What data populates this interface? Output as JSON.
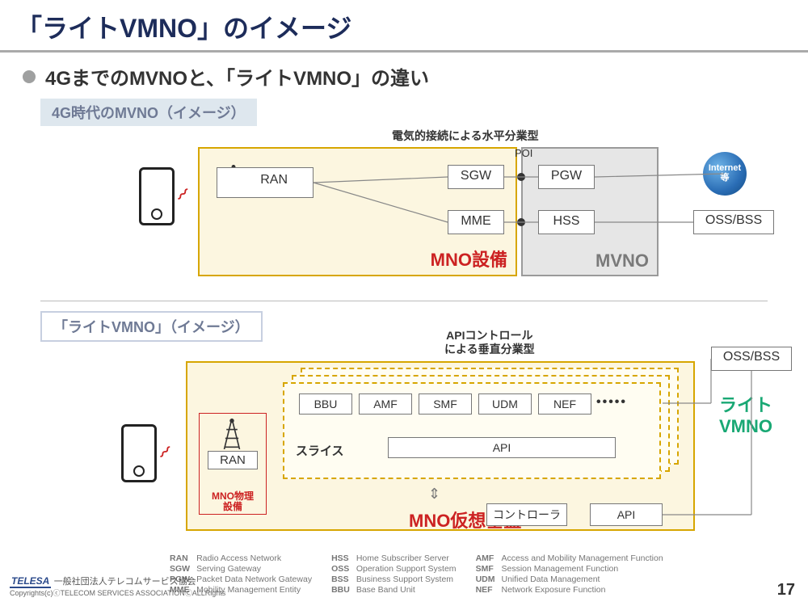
{
  "title": "「ライトVMNO」のイメージ",
  "subtitle": "4GまでのMVNOと、「ライトVMNO」の違い",
  "section1": {
    "header": "4G時代のMVNO（イメージ）",
    "topLabel": "電気的接続による水平分業型"
  },
  "section2": {
    "header": "「ライトVMNO」（イメージ）",
    "topLabel1": "APIコントロール",
    "topLabel2": "による垂直分業型"
  },
  "d1": {
    "mnoLabel": "MNO設備",
    "mvnoLabel": "MVNO",
    "poi": "POI",
    "ran": "RAN",
    "sgw": "SGW",
    "mme": "MME",
    "pgw": "PGW",
    "hss": "HSS",
    "ossbss": "OSS/BSS",
    "globe": "Internet\n等"
  },
  "d2": {
    "mnoVirtualLabel": "MNO仮想基盤",
    "ranBoxLabel": "MNO物理\n設備",
    "ran": "RAN",
    "slice": "スライス",
    "bbu": "BBU",
    "amf": "AMF",
    "smf": "SMF",
    "udm": "UDM",
    "nef": "NEF",
    "api": "API",
    "controller": "コントローラ",
    "api2": "API",
    "ossbss": "OSS/BSS",
    "lightVmno1": "ライト",
    "lightVmno2": "VMNO"
  },
  "glossary": {
    "col1": [
      [
        "RAN",
        "Radio Access Network"
      ],
      [
        "SGW",
        "Serving Gateway"
      ],
      [
        "PGW",
        "Packet Data Network Gateway"
      ],
      [
        "MME",
        "Mobility Management Entity"
      ]
    ],
    "col2": [
      [
        "HSS",
        "Home Subscriber Server"
      ],
      [
        "OSS",
        "Operation Support System"
      ],
      [
        "BSS",
        "Business Support System"
      ],
      [
        "BBU",
        "Base Band Unit"
      ]
    ],
    "col3": [
      [
        "AMF",
        "Access and Mobility Management Function"
      ],
      [
        "SMF",
        "Session Management Function"
      ],
      [
        "UDM",
        "Unified Data Management"
      ],
      [
        "NEF",
        "Network Exposure Function"
      ]
    ]
  },
  "footer": {
    "logo": "TELESA",
    "org": "一般社団法人テレコムサービス協会",
    "copyright": "Copyrights(c)ⓒTELECOM SERVICES ASSOCIATIONⒸALLRights",
    "page": "17"
  },
  "colors": {
    "titleColor": "#1d2c5a",
    "mnoBorder": "#d7a600",
    "mnoFill": "#fcf6e0",
    "mvnoFill": "#e6e6e6",
    "accentRed": "#c22",
    "accentGreen": "#19a874",
    "bg": "#ffffff"
  }
}
